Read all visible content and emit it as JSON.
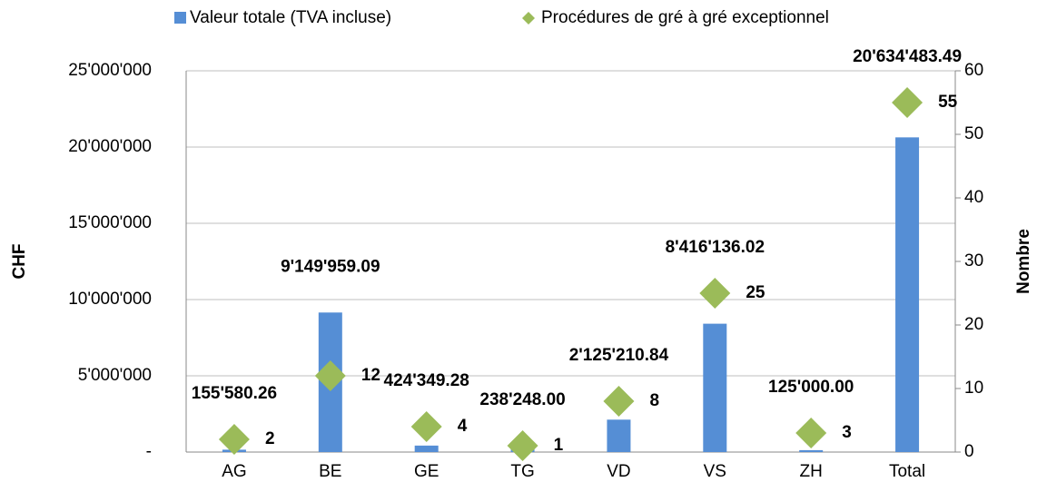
{
  "chart_data": {
    "type": "bar",
    "categories": [
      "AG",
      "BE",
      "GE",
      "TG",
      "VD",
      "VS",
      "ZH",
      "Total"
    ],
    "series": [
      {
        "name": "Valeur totale (TVA incluse)",
        "color": "#558ed5",
        "values": [
          155580.26,
          9149959.09,
          424349.28,
          238248,
          2125210.84,
          8416136.02,
          125000,
          20634483.49
        ],
        "value_labels": [
          "155'580.26",
          "9'149'959.09",
          "424'349.28",
          "238'248.00",
          "2'125'210.84",
          "8'416'136.02",
          "125'000.00",
          "20'634'483.49"
        ]
      },
      {
        "name": "Procédures de gré à gré exceptionnel",
        "color": "#9bbb59",
        "type": "scatter",
        "axis": "y2",
        "values": [
          2,
          12,
          4,
          1,
          8,
          25,
          3,
          55
        ]
      }
    ],
    "ylabel": "CHF",
    "y2label": "Nombre",
    "ylim": [
      0,
      25000000
    ],
    "yticks": [
      {
        "value": 0,
        "label": "-"
      },
      {
        "value": 5000000,
        "label": "5'000'000"
      },
      {
        "value": 10000000,
        "label": "10'000'000"
      },
      {
        "value": 15000000,
        "label": "15'000'000"
      },
      {
        "value": 20000000,
        "label": "20'000'000"
      },
      {
        "value": 25000000,
        "label": "25'000'000"
      }
    ],
    "y2lim": [
      0,
      60
    ],
    "y2ticks": [
      0,
      10,
      20,
      30,
      40,
      50,
      60
    ],
    "grid": true,
    "legend": "top"
  }
}
